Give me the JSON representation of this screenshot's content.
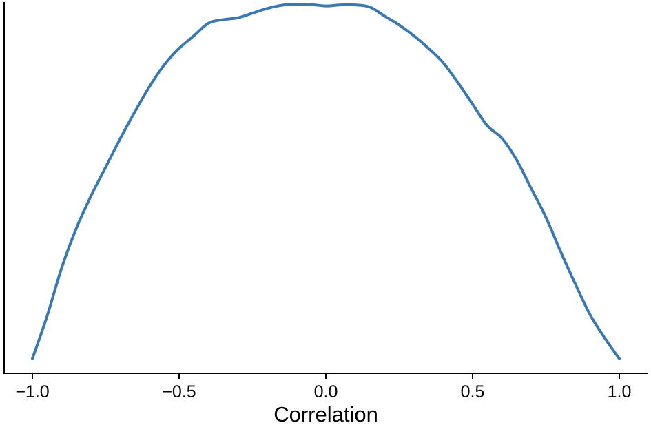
{
  "chart_data": {
    "type": "line",
    "title": "",
    "xlabel": "Correlation",
    "ylabel": "",
    "xlim": [
      -1.0,
      1.0
    ],
    "ylim": [
      0,
      1.0
    ],
    "xticks": [
      -1.0,
      -0.5,
      0.0,
      0.5,
      1.0
    ],
    "xtick_labels": [
      "−1.0",
      "−0.5",
      "0.0",
      "0.5",
      "1.0"
    ],
    "grid": false,
    "legend": "none",
    "series": [
      {
        "color": "#3a78b4",
        "x": [
          -1.0,
          -0.95,
          -0.9,
          -0.85,
          -0.8,
          -0.75,
          -0.7,
          -0.65,
          -0.6,
          -0.55,
          -0.5,
          -0.45,
          -0.4,
          -0.35,
          -0.3,
          -0.25,
          -0.2,
          -0.15,
          -0.1,
          -0.05,
          0.0,
          0.05,
          0.1,
          0.15,
          0.2,
          0.25,
          0.3,
          0.35,
          0.4,
          0.45,
          0.5,
          0.55,
          0.6,
          0.65,
          0.7,
          0.75,
          0.8,
          0.85,
          0.9,
          0.95,
          1.0
        ],
        "y": [
          0.012,
          0.13,
          0.265,
          0.375,
          0.465,
          0.545,
          0.625,
          0.7,
          0.77,
          0.83,
          0.875,
          0.91,
          0.945,
          0.955,
          0.96,
          0.973,
          0.986,
          0.995,
          0.998,
          0.997,
          0.993,
          0.996,
          0.996,
          0.99,
          0.965,
          0.94,
          0.91,
          0.875,
          0.835,
          0.78,
          0.72,
          0.66,
          0.625,
          0.565,
          0.485,
          0.405,
          0.31,
          0.22,
          0.135,
          0.07,
          0.012
        ]
      }
    ]
  }
}
